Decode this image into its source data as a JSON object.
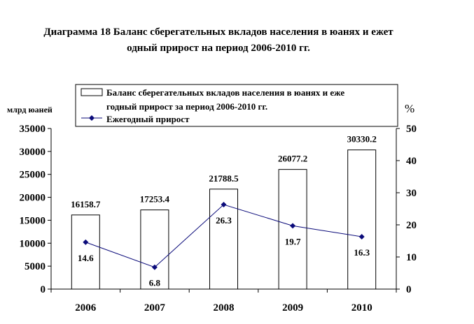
{
  "chart_data": {
    "type": "bar+line",
    "title_lines": [
      "Диаграмма 18 Баланс сберегательных вкладов населения в юанях и ежет",
      "одный прирост на период 2006-2010 гг."
    ],
    "categories": [
      "2006",
      "2007",
      "2008",
      "2009",
      "2010"
    ],
    "bars": {
      "legend_lines": [
        "Баланс сберегательных вкладов населения в юанях и еже",
        "годный прирост за период 2006-2010 гг."
      ],
      "values": [
        16158.7,
        17253.4,
        21788.5,
        26077.2,
        30330.2
      ],
      "labels": [
        "16158.7",
        "17253.4",
        "21788.5",
        "26077.2",
        "30330.2"
      ],
      "axis": "left"
    },
    "line": {
      "name": "Ежегодный прирост",
      "values": [
        14.6,
        6.8,
        26.3,
        19.7,
        16.3
      ],
      "labels": [
        "14.6",
        "6.8",
        "26.3",
        "19.7",
        "16.3"
      ],
      "axis": "right",
      "color": "#0b0b7a"
    },
    "left_axis": {
      "unit": "млрд юаней",
      "ylim": [
        0,
        35000
      ],
      "ticks": [
        "0",
        "5000",
        "10000",
        "15000",
        "20000",
        "25000",
        "30000",
        "35000"
      ]
    },
    "right_axis": {
      "unit": "%",
      "ylim": [
        0,
        50
      ],
      "ticks": [
        "0",
        "10",
        "20",
        "30",
        "40",
        "50"
      ]
    },
    "legend_position": "top",
    "grid": false
  }
}
